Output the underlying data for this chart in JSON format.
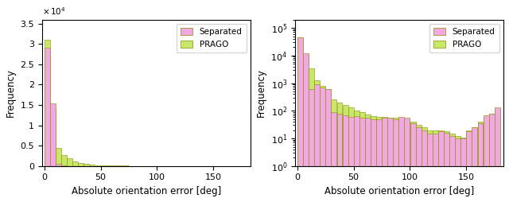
{
  "left_prago": [
    31000,
    14500,
    4500,
    2600,
    2000,
    1200,
    700,
    500,
    300,
    200,
    150,
    100,
    80,
    70,
    60,
    50,
    40,
    40,
    30,
    25,
    25,
    20,
    20,
    15,
    15,
    10,
    10,
    10,
    10,
    10,
    10,
    10,
    5,
    5,
    5,
    5
  ],
  "left_separated": [
    29000,
    15500,
    500,
    100,
    50,
    30,
    20,
    10,
    8,
    5,
    4,
    3,
    2,
    2,
    2,
    2,
    2,
    2,
    2,
    2,
    2,
    2,
    2,
    2,
    2,
    2,
    2,
    2,
    2,
    2,
    2,
    2,
    2,
    2,
    2,
    2
  ],
  "right_prago": [
    45000,
    11000,
    3500,
    1300,
    800,
    600,
    250,
    200,
    160,
    130,
    100,
    90,
    75,
    65,
    60,
    60,
    55,
    55,
    55,
    50,
    40,
    30,
    25,
    20,
    20,
    20,
    18,
    15,
    12,
    11,
    20,
    25,
    40,
    60,
    80,
    120
  ],
  "right_separated": [
    45000,
    12000,
    600,
    900,
    700,
    600,
    90,
    80,
    70,
    60,
    65,
    55,
    55,
    50,
    50,
    55,
    55,
    50,
    60,
    55,
    35,
    25,
    20,
    15,
    15,
    18,
    16,
    12,
    10,
    10,
    18,
    25,
    35,
    70,
    80,
    130
  ],
  "bin_edges": [
    0,
    5,
    10,
    15,
    20,
    25,
    30,
    35,
    40,
    45,
    50,
    55,
    60,
    65,
    70,
    75,
    80,
    85,
    90,
    95,
    100,
    105,
    110,
    115,
    120,
    125,
    130,
    135,
    140,
    145,
    150,
    155,
    160,
    165,
    170,
    175,
    180
  ],
  "color_prago": "#c8e86a",
  "color_separated": "#f2a8e0",
  "edgecolor": "#8a8a00",
  "xlabel": "Absolute orientation error [deg]",
  "ylabel": "Frequency",
  "legend_separated": "Separated",
  "legend_prago": "PRAGO",
  "left_yticks": [
    0,
    5000,
    10000,
    15000,
    20000,
    25000,
    30000,
    35000
  ],
  "left_ytick_labels": [
    "0",
    "0.5",
    "1",
    "1.5",
    "2",
    "2.5",
    "3",
    "3.5"
  ],
  "xticks": [
    0,
    50,
    100,
    150
  ]
}
